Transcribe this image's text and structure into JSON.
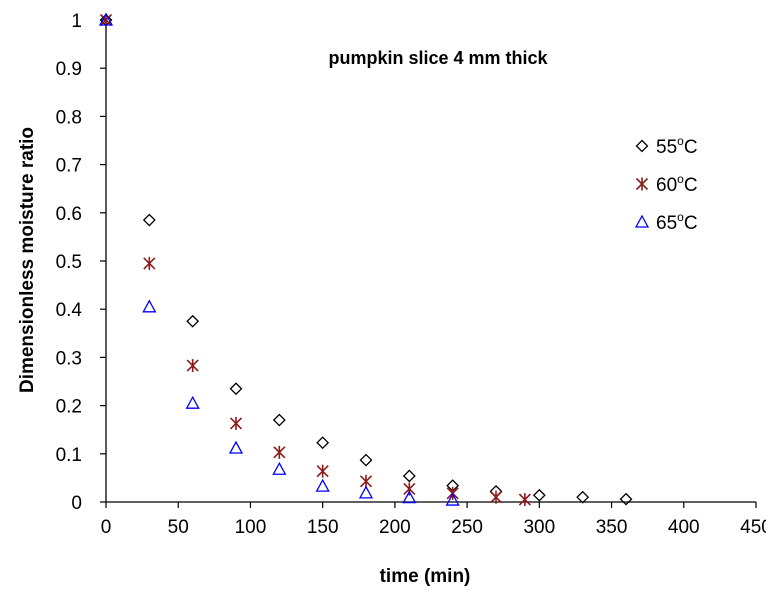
{
  "chart_data": {
    "type": "scatter",
    "title": "pumpkin slice 4 mm thick",
    "xlabel": "time (min)",
    "ylabel": "Dimensionless moisture ratio",
    "xlim": [
      0,
      450
    ],
    "ylim": [
      0,
      1
    ],
    "xticks": [
      "0",
      "50",
      "100",
      "150",
      "200",
      "250",
      "300",
      "350",
      "400",
      "450"
    ],
    "yticks": [
      "0",
      "0.1",
      "0.2",
      "0.3",
      "0.4",
      "0.5",
      "0.6",
      "0.7",
      "0.8",
      "0.9",
      "1"
    ],
    "grid": false,
    "legend_position": "right",
    "series": [
      {
        "name": "55°C",
        "legend_base": "55",
        "legend_sup": "o",
        "legend_unit": "C",
        "marker": "diamond",
        "color": "#000000",
        "x": [
          0,
          30,
          60,
          90,
          120,
          150,
          180,
          210,
          240,
          270,
          300,
          330,
          360
        ],
        "y": [
          1,
          0.585,
          0.375,
          0.235,
          0.17,
          0.123,
          0.087,
          0.054,
          0.034,
          0.022,
          0.014,
          0.01,
          0.006
        ]
      },
      {
        "name": "60°C",
        "legend_base": "60",
        "legend_sup": "o",
        "legend_unit": "C",
        "marker": "star",
        "color": "#8b1a1a",
        "x": [
          0,
          30,
          60,
          90,
          120,
          150,
          180,
          210,
          240,
          270,
          290
        ],
        "y": [
          1,
          0.495,
          0.283,
          0.163,
          0.103,
          0.064,
          0.043,
          0.027,
          0.018,
          0.01,
          0.005
        ]
      },
      {
        "name": "65°C",
        "legend_base": "65",
        "legend_sup": "o",
        "legend_unit": "C",
        "marker": "triangle",
        "color": "#0000ff",
        "x": [
          0,
          30,
          60,
          90,
          120,
          150,
          180,
          210,
          240
        ],
        "y": [
          1,
          0.405,
          0.205,
          0.112,
          0.068,
          0.033,
          0.019,
          0.009,
          0.004
        ]
      }
    ]
  }
}
